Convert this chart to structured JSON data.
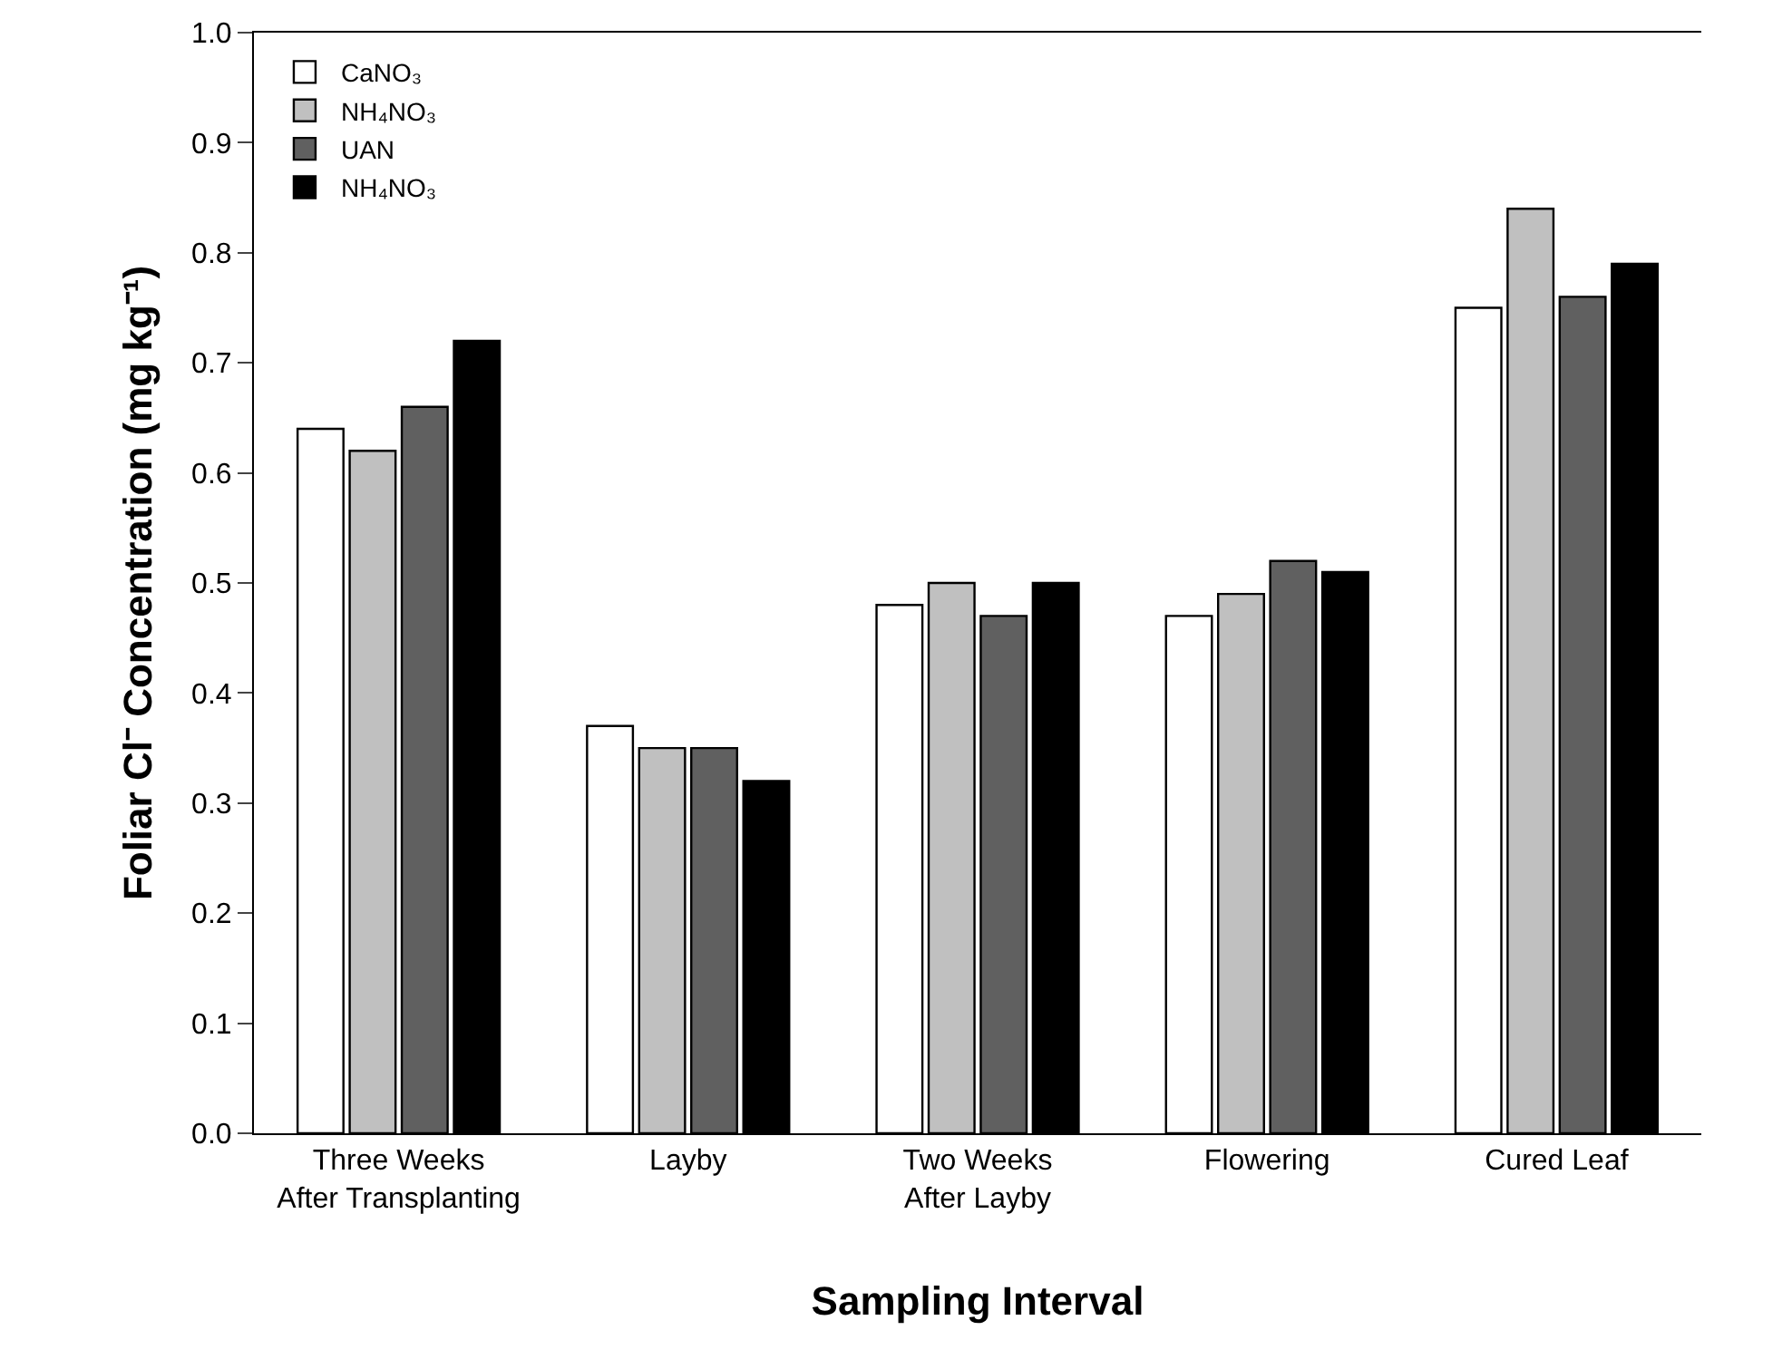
{
  "chart_data": {
    "type": "bar",
    "xlabel": "Sampling Interval",
    "ylabel": "Foliar Cl⁻ Concentration (mg kg⁻¹)",
    "categories": [
      "Three Weeks\nAfter Transplanting",
      "Layby",
      "Two Weeks\nAfter Layby",
      "Flowering",
      "Cured Leaf"
    ],
    "series": [
      {
        "name": "CaNO₃",
        "color": "#ffffff",
        "values": [
          0.64,
          0.37,
          0.48,
          0.47,
          0.75
        ]
      },
      {
        "name": "NH₄NO₃",
        "color": "#c0c0c0",
        "values": [
          0.62,
          0.35,
          0.5,
          0.49,
          0.84
        ]
      },
      {
        "name": "UAN",
        "color": "#606060",
        "values": [
          0.66,
          0.35,
          0.47,
          0.52,
          0.76
        ]
      },
      {
        "name": "NH₄NO₃",
        "color": "#000000",
        "values": [
          0.72,
          0.32,
          0.5,
          0.51,
          0.79
        ]
      }
    ],
    "ylim": [
      0,
      1
    ],
    "yticks": [
      {
        "value": 0,
        "label": "0.0"
      },
      0.1,
      0.2,
      0.3,
      0.4,
      0.5,
      0.6,
      0.7,
      0.8,
      0.9,
      {
        "value": 1,
        "label": "1.0"
      }
    ],
    "grid": false,
    "legend": "top left"
  }
}
